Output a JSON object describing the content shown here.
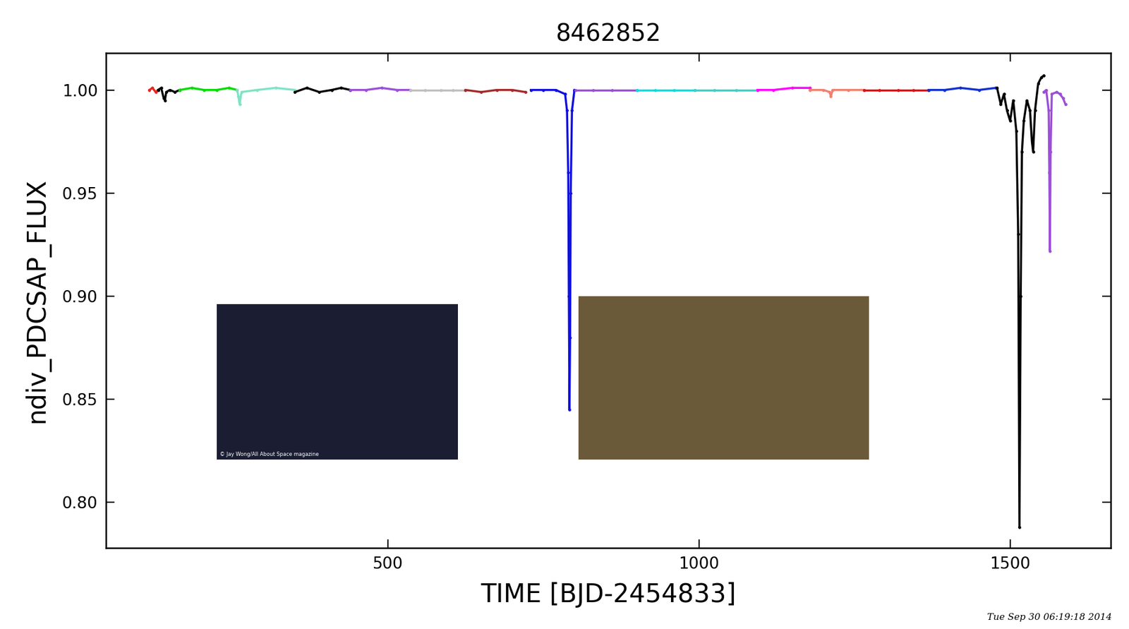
{
  "chart_data": {
    "type": "line",
    "title": "8462852",
    "x_label": "TIME [BJD-2454833]",
    "y_label": "ndiv_PDCSAP_FLUX",
    "xlim": [
      47.5,
      1662
    ],
    "xticks": [
      500,
      1000,
      1500
    ],
    "ylim": [
      0.778,
      1.018
    ],
    "yticks": [
      {
        "value": 0.8,
        "label": "0.80"
      },
      0.85,
      {
        "value": 0.9,
        "label": "0.90"
      },
      0.95,
      {
        "value": 1.0,
        "label": "1.00"
      }
    ],
    "grid": false,
    "marker": "point",
    "line_style": "solid",
    "annotations": [
      "© Jay Wong/All About Space magazine",
      "Tue Sep 30 06:19:18 2014"
    ],
    "series": [
      {
        "color": "#e8261f",
        "x": [
          117,
          122,
          127,
          131
        ],
        "values": [
          1.0,
          1.001,
          0.999,
          1.0
        ]
      },
      {
        "color": "#000000",
        "x": [
          131,
          136,
          140,
          142,
          144,
          150,
          158,
          166
        ],
        "values": [
          1.0,
          1.001,
          0.996,
          0.995,
          0.999,
          1.0,
          0.999,
          1.0
        ]
      },
      {
        "color": "#00dd00",
        "x": [
          166,
          185,
          205,
          225,
          245,
          258
        ],
        "values": [
          1.0,
          1.001,
          1.0,
          1.0,
          1.001,
          1.0
        ]
      },
      {
        "color": "#7fe3c6",
        "x": [
          258,
          260,
          262,
          265,
          290,
          320,
          351
        ],
        "values": [
          1.0,
          0.997,
          0.993,
          0.999,
          1.0,
          1.001,
          1.0
        ]
      },
      {
        "color": "#000000",
        "x": [
          351,
          370,
          390,
          410,
          425,
          440
        ],
        "values": [
          0.999,
          1.001,
          0.999,
          1.0,
          1.001,
          1.0
        ]
      },
      {
        "color": "#9b4fd6",
        "x": [
          440,
          465,
          490,
          515,
          536
        ],
        "values": [
          1.0,
          1.0,
          1.001,
          1.0,
          1.0
        ]
      },
      {
        "color": "#c0c0c0",
        "x": [
          536,
          560,
          585,
          605,
          625
        ],
        "values": [
          1.0,
          1.0,
          1.0,
          1.0,
          1.0
        ]
      },
      {
        "color": "#a52a2a",
        "x": [
          625,
          650,
          675,
          700,
          721
        ],
        "values": [
          1.0,
          0.999,
          1.0,
          1.0,
          0.999
        ]
      },
      {
        "color": "#1010e0",
        "x": [
          730,
          750,
          770,
          785,
          788,
          790,
          791,
          792,
          793,
          794,
          796,
          800
        ],
        "values": [
          1.0,
          1.0,
          1.0,
          0.998,
          0.99,
          0.96,
          0.9,
          0.845,
          0.88,
          0.95,
          0.99,
          1.0
        ]
      },
      {
        "color": "#9b4fd6",
        "x": [
          802,
          830,
          860,
          900
        ],
        "values": [
          1.0,
          1.0,
          1.0,
          1.0
        ]
      },
      {
        "color": "#00e0e0",
        "x": [
          900,
          930,
          960,
          993
        ],
        "values": [
          1.0,
          1.0,
          1.0,
          1.0
        ]
      },
      {
        "color": "#40d0c8",
        "x": [
          993,
          1025,
          1060,
          1094
        ],
        "values": [
          1.0,
          1.0,
          1.0,
          1.0
        ]
      },
      {
        "color": "#ff00ff",
        "x": [
          1094,
          1120,
          1150,
          1178
        ],
        "values": [
          1.0,
          1.0,
          1.001,
          1.001
        ]
      },
      {
        "color": "#f08070",
        "x": [
          1178,
          1200,
          1210,
          1212,
          1215,
          1240,
          1265
        ],
        "values": [
          1.0,
          1.0,
          0.999,
          0.997,
          1.0,
          1.0,
          1.0
        ]
      },
      {
        "color": "#e01010",
        "x": [
          1265,
          1290,
          1320,
          1345,
          1369
        ],
        "values": [
          1.0,
          1.0,
          1.0,
          1.0,
          1.0
        ]
      },
      {
        "color": "#1030d0",
        "x": [
          1369,
          1395,
          1420,
          1450,
          1477
        ],
        "values": [
          1.0,
          1.0,
          1.001,
          1.0,
          1.001
        ]
      },
      {
        "color": "#000000",
        "x": [
          1479,
          1485,
          1490,
          1495,
          1500,
          1505,
          1510,
          1513,
          1515,
          1517,
          1519,
          1522,
          1527,
          1532,
          1535,
          1537,
          1540,
          1545,
          1550,
          1554
        ],
        "values": [
          1.001,
          0.993,
          0.998,
          0.99,
          0.985,
          0.995,
          0.98,
          0.93,
          0.788,
          0.9,
          0.97,
          0.985,
          0.995,
          0.99,
          0.975,
          0.97,
          0.99,
          1.003,
          1.006,
          1.007
        ]
      },
      {
        "color": "#9b4fd6",
        "x": [
          1554,
          1558,
          1562,
          1563,
          1564,
          1565,
          1567,
          1575,
          1580,
          1585,
          1589
        ],
        "values": [
          0.999,
          1.0,
          0.99,
          0.96,
          0.922,
          0.97,
          0.998,
          0.999,
          0.998,
          0.996,
          0.993
        ]
      }
    ]
  }
}
